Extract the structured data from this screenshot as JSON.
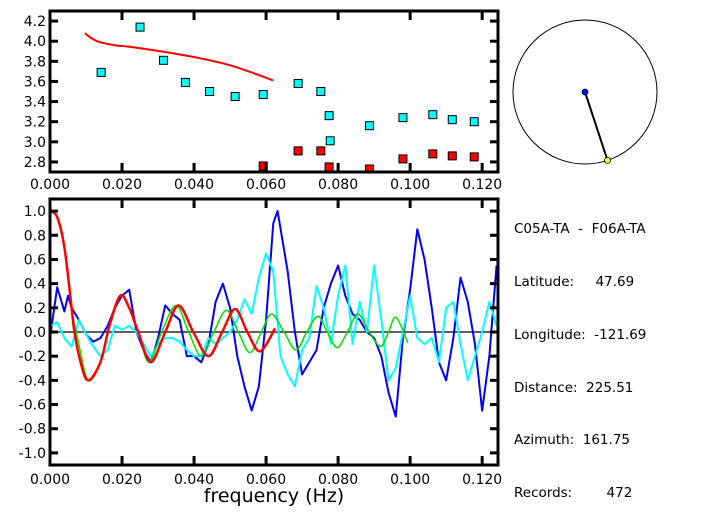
{
  "colors": {
    "red": "#ff0000",
    "cyan": "#00ffff",
    "blue": "#0000ff",
    "green": "#00e000",
    "axis": "#000000",
    "station": "#ffff00",
    "center": "#0000ff"
  },
  "info": {
    "pair": "C05A-TA  -  F06A-TA",
    "latitude": "Latitude:     47.69",
    "longitude": "Longitude:  -121.69",
    "distance": "Distance:  225.51",
    "azimuth": "Azimuth:  161.75",
    "records": "Records:        472"
  },
  "map": {
    "azimuth_deg": 161.75
  },
  "chart_data": [
    {
      "type": "scatter",
      "title": "",
      "xlabel": "",
      "ylabel": "",
      "xlim": [
        0,
        0.1244
      ],
      "ylim": [
        2.7,
        4.3
      ],
      "xticks": [
        "0.000",
        "0.020",
        "0.040",
        "0.060",
        "0.080",
        "0.100",
        "0.120"
      ],
      "yticks": [
        "2.8",
        "3.0",
        "3.2",
        "3.4",
        "3.6",
        "3.8",
        "4.0",
        "4.2"
      ],
      "series": [
        {
          "name": "dispersion curve",
          "kind": "line",
          "color": "red",
          "points": [
            [
              0.0097,
              4.08
            ],
            [
              0.0115,
              4.03
            ],
            [
              0.0139,
              3.99
            ],
            [
              0.018,
              3.96
            ],
            [
              0.0231,
              3.94
            ],
            [
              0.0324,
              3.89
            ],
            [
              0.0417,
              3.83
            ],
            [
              0.051,
              3.75
            ],
            [
              0.062,
              3.61
            ]
          ]
        },
        {
          "name": "cyan picks",
          "kind": "square",
          "color": "cyan",
          "points": [
            [
              0.0142,
              3.69
            ],
            [
              0.025,
              4.14
            ],
            [
              0.0315,
              3.81
            ],
            [
              0.0376,
              3.59
            ],
            [
              0.0443,
              3.5
            ],
            [
              0.0514,
              3.45
            ],
            [
              0.0592,
              3.47
            ],
            [
              0.0689,
              3.58
            ],
            [
              0.0752,
              3.5
            ],
            [
              0.0775,
              3.26
            ],
            [
              0.0778,
              3.01
            ],
            [
              0.0887,
              3.16
            ],
            [
              0.098,
              3.24
            ],
            [
              0.1063,
              3.27
            ],
            [
              0.1117,
              3.22
            ],
            [
              0.1178,
              3.2
            ]
          ]
        },
        {
          "name": "red picks",
          "kind": "square",
          "color": "red",
          "points": [
            [
              0.0592,
              2.76
            ],
            [
              0.0689,
              2.91
            ],
            [
              0.0752,
              2.91
            ],
            [
              0.0775,
              2.75
            ],
            [
              0.0887,
              2.73
            ],
            [
              0.098,
              2.83
            ],
            [
              0.1063,
              2.88
            ],
            [
              0.1117,
              2.86
            ],
            [
              0.1178,
              2.85
            ]
          ]
        }
      ]
    },
    {
      "type": "line",
      "title": "",
      "xlabel": "frequency (Hz)",
      "ylabel": "",
      "xlim": [
        0,
        0.1244
      ],
      "ylim": [
        -1.1,
        1.1
      ],
      "xticks": [
        "0.000",
        "0.020",
        "0.040",
        "0.060",
        "0.080",
        "0.100",
        "0.120"
      ],
      "yticks": [
        "-1.0",
        "-0.8",
        "-0.6",
        "-0.4",
        "-0.2",
        "0.0",
        "0.2",
        "0.4",
        "0.6",
        "0.8",
        "1.0"
      ],
      "zero_line": true,
      "series": [
        {
          "name": "blue",
          "color": "blue",
          "width": 2,
          "points": [
            [
              0,
              -0.05
            ],
            [
              0.002,
              0.37
            ],
            [
              0.004,
              0.17
            ],
            [
              0.005,
              0.3
            ],
            [
              0.006,
              0.2
            ],
            [
              0.008,
              0.1
            ],
            [
              0.01,
              -0.02
            ],
            [
              0.012,
              -0.08
            ],
            [
              0.014,
              -0.05
            ],
            [
              0.016,
              0.05
            ],
            [
              0.018,
              0.2
            ],
            [
              0.02,
              0.3
            ],
            [
              0.022,
              0.35
            ],
            [
              0.024,
              0.0
            ],
            [
              0.026,
              -0.15
            ],
            [
              0.028,
              -0.25
            ],
            [
              0.03,
              -0.05
            ],
            [
              0.032,
              0.22
            ],
            [
              0.034,
              0.15
            ],
            [
              0.036,
              0.1
            ],
            [
              0.038,
              -0.2
            ],
            [
              0.04,
              -0.2
            ],
            [
              0.042,
              -0.25
            ],
            [
              0.044,
              -0.1
            ],
            [
              0.046,
              0.25
            ],
            [
              0.048,
              0.4
            ],
            [
              0.05,
              0.2
            ],
            [
              0.052,
              -0.2
            ],
            [
              0.054,
              -0.45
            ],
            [
              0.056,
              -0.65
            ],
            [
              0.058,
              -0.45
            ],
            [
              0.06,
              0.1
            ],
            [
              0.062,
              0.9
            ],
            [
              0.0632,
              1.0
            ],
            [
              0.066,
              0.5
            ],
            [
              0.068,
              0.0
            ],
            [
              0.07,
              -0.35
            ],
            [
              0.072,
              -0.25
            ],
            [
              0.074,
              -0.15
            ],
            [
              0.076,
              0.2
            ],
            [
              0.078,
              0.4
            ],
            [
              0.08,
              0.55
            ],
            [
              0.082,
              0.3
            ],
            [
              0.084,
              0.15
            ],
            [
              0.086,
              0.1
            ],
            [
              0.088,
              0.0
            ],
            [
              0.09,
              -0.05
            ],
            [
              0.092,
              -0.2
            ],
            [
              0.094,
              -0.5
            ],
            [
              0.096,
              -0.7
            ],
            [
              0.098,
              -0.05
            ],
            [
              0.1,
              0.35
            ],
            [
              0.102,
              0.85
            ],
            [
              0.104,
              0.6
            ],
            [
              0.106,
              0.2
            ],
            [
              0.108,
              -0.25
            ],
            [
              0.11,
              -0.4
            ],
            [
              0.112,
              -0.05
            ],
            [
              0.114,
              0.45
            ],
            [
              0.116,
              0.25
            ],
            [
              0.118,
              -0.1
            ],
            [
              0.12,
              -0.65
            ],
            [
              0.122,
              -0.2
            ],
            [
              0.124,
              0.55
            ]
          ]
        },
        {
          "name": "cyan",
          "color": "cyan",
          "width": 2,
          "points": [
            [
              0,
              0.05
            ],
            [
              0.002,
              0.08
            ],
            [
              0.004,
              -0.05
            ],
            [
              0.006,
              -0.12
            ],
            [
              0.008,
              0.1
            ],
            [
              0.01,
              -0.02
            ],
            [
              0.012,
              -0.12
            ],
            [
              0.014,
              -0.2
            ],
            [
              0.016,
              -0.15
            ],
            [
              0.018,
              0.05
            ],
            [
              0.02,
              0.02
            ],
            [
              0.022,
              0.05
            ],
            [
              0.024,
              0.0
            ],
            [
              0.026,
              -0.1
            ],
            [
              0.028,
              -0.2
            ],
            [
              0.03,
              -0.1
            ],
            [
              0.032,
              -0.05
            ],
            [
              0.034,
              -0.05
            ],
            [
              0.036,
              -0.08
            ],
            [
              0.038,
              -0.15
            ],
            [
              0.04,
              -0.2
            ],
            [
              0.042,
              -0.2
            ],
            [
              0.044,
              -0.05
            ],
            [
              0.046,
              -0.1
            ],
            [
              0.048,
              -0.05
            ],
            [
              0.05,
              0.0
            ],
            [
              0.052,
              0.1
            ],
            [
              0.054,
              0.27
            ],
            [
              0.056,
              0.15
            ],
            [
              0.058,
              0.45
            ],
            [
              0.06,
              0.65
            ],
            [
              0.062,
              0.5
            ],
            [
              0.064,
              -0.2
            ],
            [
              0.066,
              -0.35
            ],
            [
              0.068,
              -0.45
            ],
            [
              0.07,
              -0.15
            ],
            [
              0.072,
              -0.05
            ],
            [
              0.074,
              0.38
            ],
            [
              0.076,
              0.2
            ],
            [
              0.078,
              -0.1
            ],
            [
              0.08,
              0.3
            ],
            [
              0.082,
              0.55
            ],
            [
              0.084,
              -0.1
            ],
            [
              0.086,
              0.25
            ],
            [
              0.088,
              0.0
            ],
            [
              0.09,
              0.55
            ],
            [
              0.092,
              0.1
            ],
            [
              0.094,
              -0.4
            ],
            [
              0.096,
              -0.3
            ],
            [
              0.098,
              0.0
            ],
            [
              0.1,
              0.3
            ],
            [
              0.102,
              -0.05
            ],
            [
              0.104,
              -0.1
            ],
            [
              0.106,
              -0.05
            ],
            [
              0.108,
              -0.25
            ],
            [
              0.11,
              0.2
            ],
            [
              0.112,
              0.25
            ],
            [
              0.114,
              -0.1
            ],
            [
              0.116,
              -0.4
            ],
            [
              0.118,
              -0.2
            ],
            [
              0.12,
              0.0
            ],
            [
              0.122,
              0.25
            ],
            [
              0.124,
              0.05
            ]
          ]
        },
        {
          "name": "green",
          "color": "green",
          "width": 1.5,
          "smooth": true,
          "points": [
            [
              0,
              1.0
            ],
            [
              0.002,
              0.95
            ],
            [
              0.004,
              0.7
            ],
            [
              0.006,
              0.2
            ],
            [
              0.008,
              -0.1
            ],
            [
              0.0106,
              -0.4
            ],
            [
              0.014,
              -0.25
            ],
            [
              0.017,
              0.1
            ],
            [
              0.0195,
              0.3
            ],
            [
              0.022,
              0.2
            ],
            [
              0.0245,
              0.0
            ],
            [
              0.0275,
              -0.25
            ],
            [
              0.031,
              0.0
            ],
            [
              0.035,
              0.22
            ],
            [
              0.0385,
              0.0
            ],
            [
              0.042,
              -0.2
            ],
            [
              0.0455,
              0.0
            ],
            [
              0.049,
              0.18
            ],
            [
              0.0523,
              0.0
            ],
            [
              0.0555,
              -0.17
            ],
            [
              0.0587,
              0.0
            ],
            [
              0.0615,
              0.15
            ],
            [
              0.065,
              0.0
            ],
            [
              0.0683,
              -0.15
            ],
            [
              0.0713,
              0.0
            ],
            [
              0.0744,
              0.13
            ],
            [
              0.077,
              0.0
            ],
            [
              0.0797,
              -0.13
            ],
            [
              0.0826,
              0.0
            ],
            [
              0.0855,
              0.15
            ],
            [
              0.0886,
              0.0
            ],
            [
              0.0918,
              -0.12
            ],
            [
              0.094,
              0.0
            ],
            [
              0.0961,
              0.12
            ],
            [
              0.0994,
              -0.09
            ]
          ]
        },
        {
          "name": "red",
          "color": "red",
          "width": 2.5,
          "smooth": true,
          "points": [
            [
              0,
              1.0
            ],
            [
              0.002,
              0.95
            ],
            [
              0.004,
              0.7
            ],
            [
              0.006,
              0.2
            ],
            [
              0.0068,
              0.0
            ],
            [
              0.0085,
              -0.25
            ],
            [
              0.0106,
              -0.4
            ],
            [
              0.014,
              -0.25
            ],
            [
              0.0165,
              0.05
            ],
            [
              0.0195,
              0.3
            ],
            [
              0.022,
              0.2
            ],
            [
              0.0245,
              0.0
            ],
            [
              0.028,
              -0.25
            ],
            [
              0.032,
              0.0
            ],
            [
              0.0357,
              0.22
            ],
            [
              0.0398,
              0.0
            ],
            [
              0.044,
              -0.2
            ],
            [
              0.0478,
              0.0
            ],
            [
              0.0514,
              0.19
            ],
            [
              0.0548,
              0.0
            ],
            [
              0.0583,
              -0.16
            ],
            [
              0.0625,
              0.03
            ]
          ]
        }
      ]
    }
  ]
}
